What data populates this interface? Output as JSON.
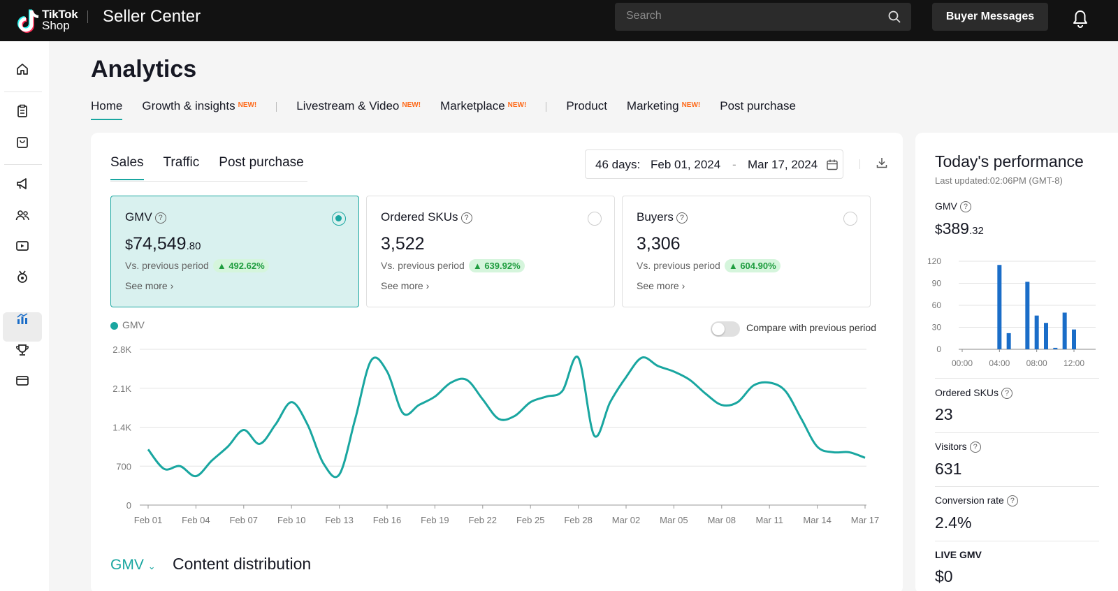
{
  "header": {
    "logo_line1": "TikTok",
    "logo_line2": "Shop",
    "app_title": "Seller Center",
    "search_placeholder": "Search",
    "buyer_messages": "Buyer Messages"
  },
  "sidebar": {
    "icons": [
      "home-icon",
      "orders-icon",
      "products-icon",
      "marketing-icon",
      "affiliate-icon",
      "livestream-icon",
      "growth-icon",
      "analytics-icon",
      "rewards-icon",
      "finance-icon"
    ],
    "active": "analytics-icon"
  },
  "page": {
    "title": "Analytics",
    "nav": [
      {
        "label": "Home",
        "new": "",
        "active": true
      },
      {
        "label": "Growth & insights",
        "new": "NEW!"
      },
      {
        "label": "Livestream & Video",
        "new": "NEW!"
      },
      {
        "label": "Marketplace",
        "new": "NEW!"
      },
      {
        "label": "Product",
        "new": ""
      },
      {
        "label": "Marketing",
        "new": "NEW!"
      },
      {
        "label": "Post purchase",
        "new": ""
      }
    ]
  },
  "sales_card": {
    "tabs": [
      "Sales",
      "Traffic",
      "Post purchase"
    ],
    "active_tab": "Sales",
    "date_range": {
      "label": "46 days:",
      "start": "Feb 01, 2024",
      "separator": "-",
      "end": "Mar 17, 2024"
    },
    "metrics": [
      {
        "title": "GMV",
        "currency": "$",
        "value": "74,549",
        "cents": ".80",
        "vs_label": "Vs. previous period",
        "change": "492.62%",
        "see_more": "See more",
        "selected": true
      },
      {
        "title": "Ordered SKUs",
        "currency": "",
        "value": "3,522",
        "cents": "",
        "vs_label": "Vs. previous period",
        "change": "639.92%",
        "see_more": "See more",
        "selected": false
      },
      {
        "title": "Buyers",
        "currency": "",
        "value": "3,306",
        "cents": "",
        "vs_label": "Vs. previous period",
        "change": "604.90%",
        "see_more": "See more",
        "selected": false
      }
    ],
    "legend": "GMV",
    "compare_label": "Compare with previous period",
    "compare_on": false,
    "metric_select": "GMV",
    "section_title": "Content distribution"
  },
  "today": {
    "title": "Today's performance",
    "updated": "Last updated:02:06PM (GMT-8)",
    "gmv_label": "GMV",
    "gmv_currency": "$",
    "gmv_value": "389",
    "gmv_cents": ".32",
    "ordered_skus_label": "Ordered SKUs",
    "ordered_skus_value": "23",
    "visitors_label": "Visitors",
    "visitors_value": "631",
    "conversion_label": "Conversion rate",
    "conversion_value": "2.4%",
    "live_gmv_label": "LIVE GMV",
    "live_gmv_value": "$0"
  },
  "chart_data": [
    {
      "type": "line",
      "color": "#19a6a0",
      "ylim": [
        0,
        2800
      ],
      "yticks": [
        "0",
        "700",
        "1.4K",
        "2.1K",
        "2.8K"
      ],
      "xticks": [
        "Feb 01",
        "Feb 04",
        "Feb 07",
        "Feb 10",
        "Feb 13",
        "Feb 16",
        "Feb 19",
        "Feb 22",
        "Feb 25",
        "Feb 28",
        "Mar 02",
        "Mar 05",
        "Mar 08",
        "Mar 11",
        "Mar 14",
        "Mar 17"
      ],
      "series": [
        {
          "name": "GMV",
          "values": [
            1000,
            650,
            700,
            520,
            800,
            1050,
            1350,
            1100,
            1450,
            1850,
            1450,
            750,
            550,
            1550,
            2600,
            2400,
            1650,
            1800,
            1950,
            2200,
            2250,
            1900,
            1550,
            1600,
            1850,
            1950,
            2050,
            2650,
            1250,
            1850,
            2300,
            2650,
            2500,
            2400,
            2250,
            2000,
            1800,
            1850,
            2150,
            2200,
            2050,
            1550,
            1050,
            950,
            950,
            850
          ]
        }
      ]
    },
    {
      "type": "bar",
      "color": "#1a6dc8",
      "ylim": [
        0,
        120
      ],
      "yticks": [
        "0",
        "30",
        "60",
        "90",
        "120"
      ],
      "xticks": [
        "00:00",
        "04:00",
        "08:00",
        "12:00"
      ],
      "hours": [
        4,
        5,
        7,
        8,
        9,
        10,
        11,
        12
      ],
      "values": [
        115,
        22,
        92,
        46,
        36,
        2,
        50,
        27
      ]
    }
  ]
}
